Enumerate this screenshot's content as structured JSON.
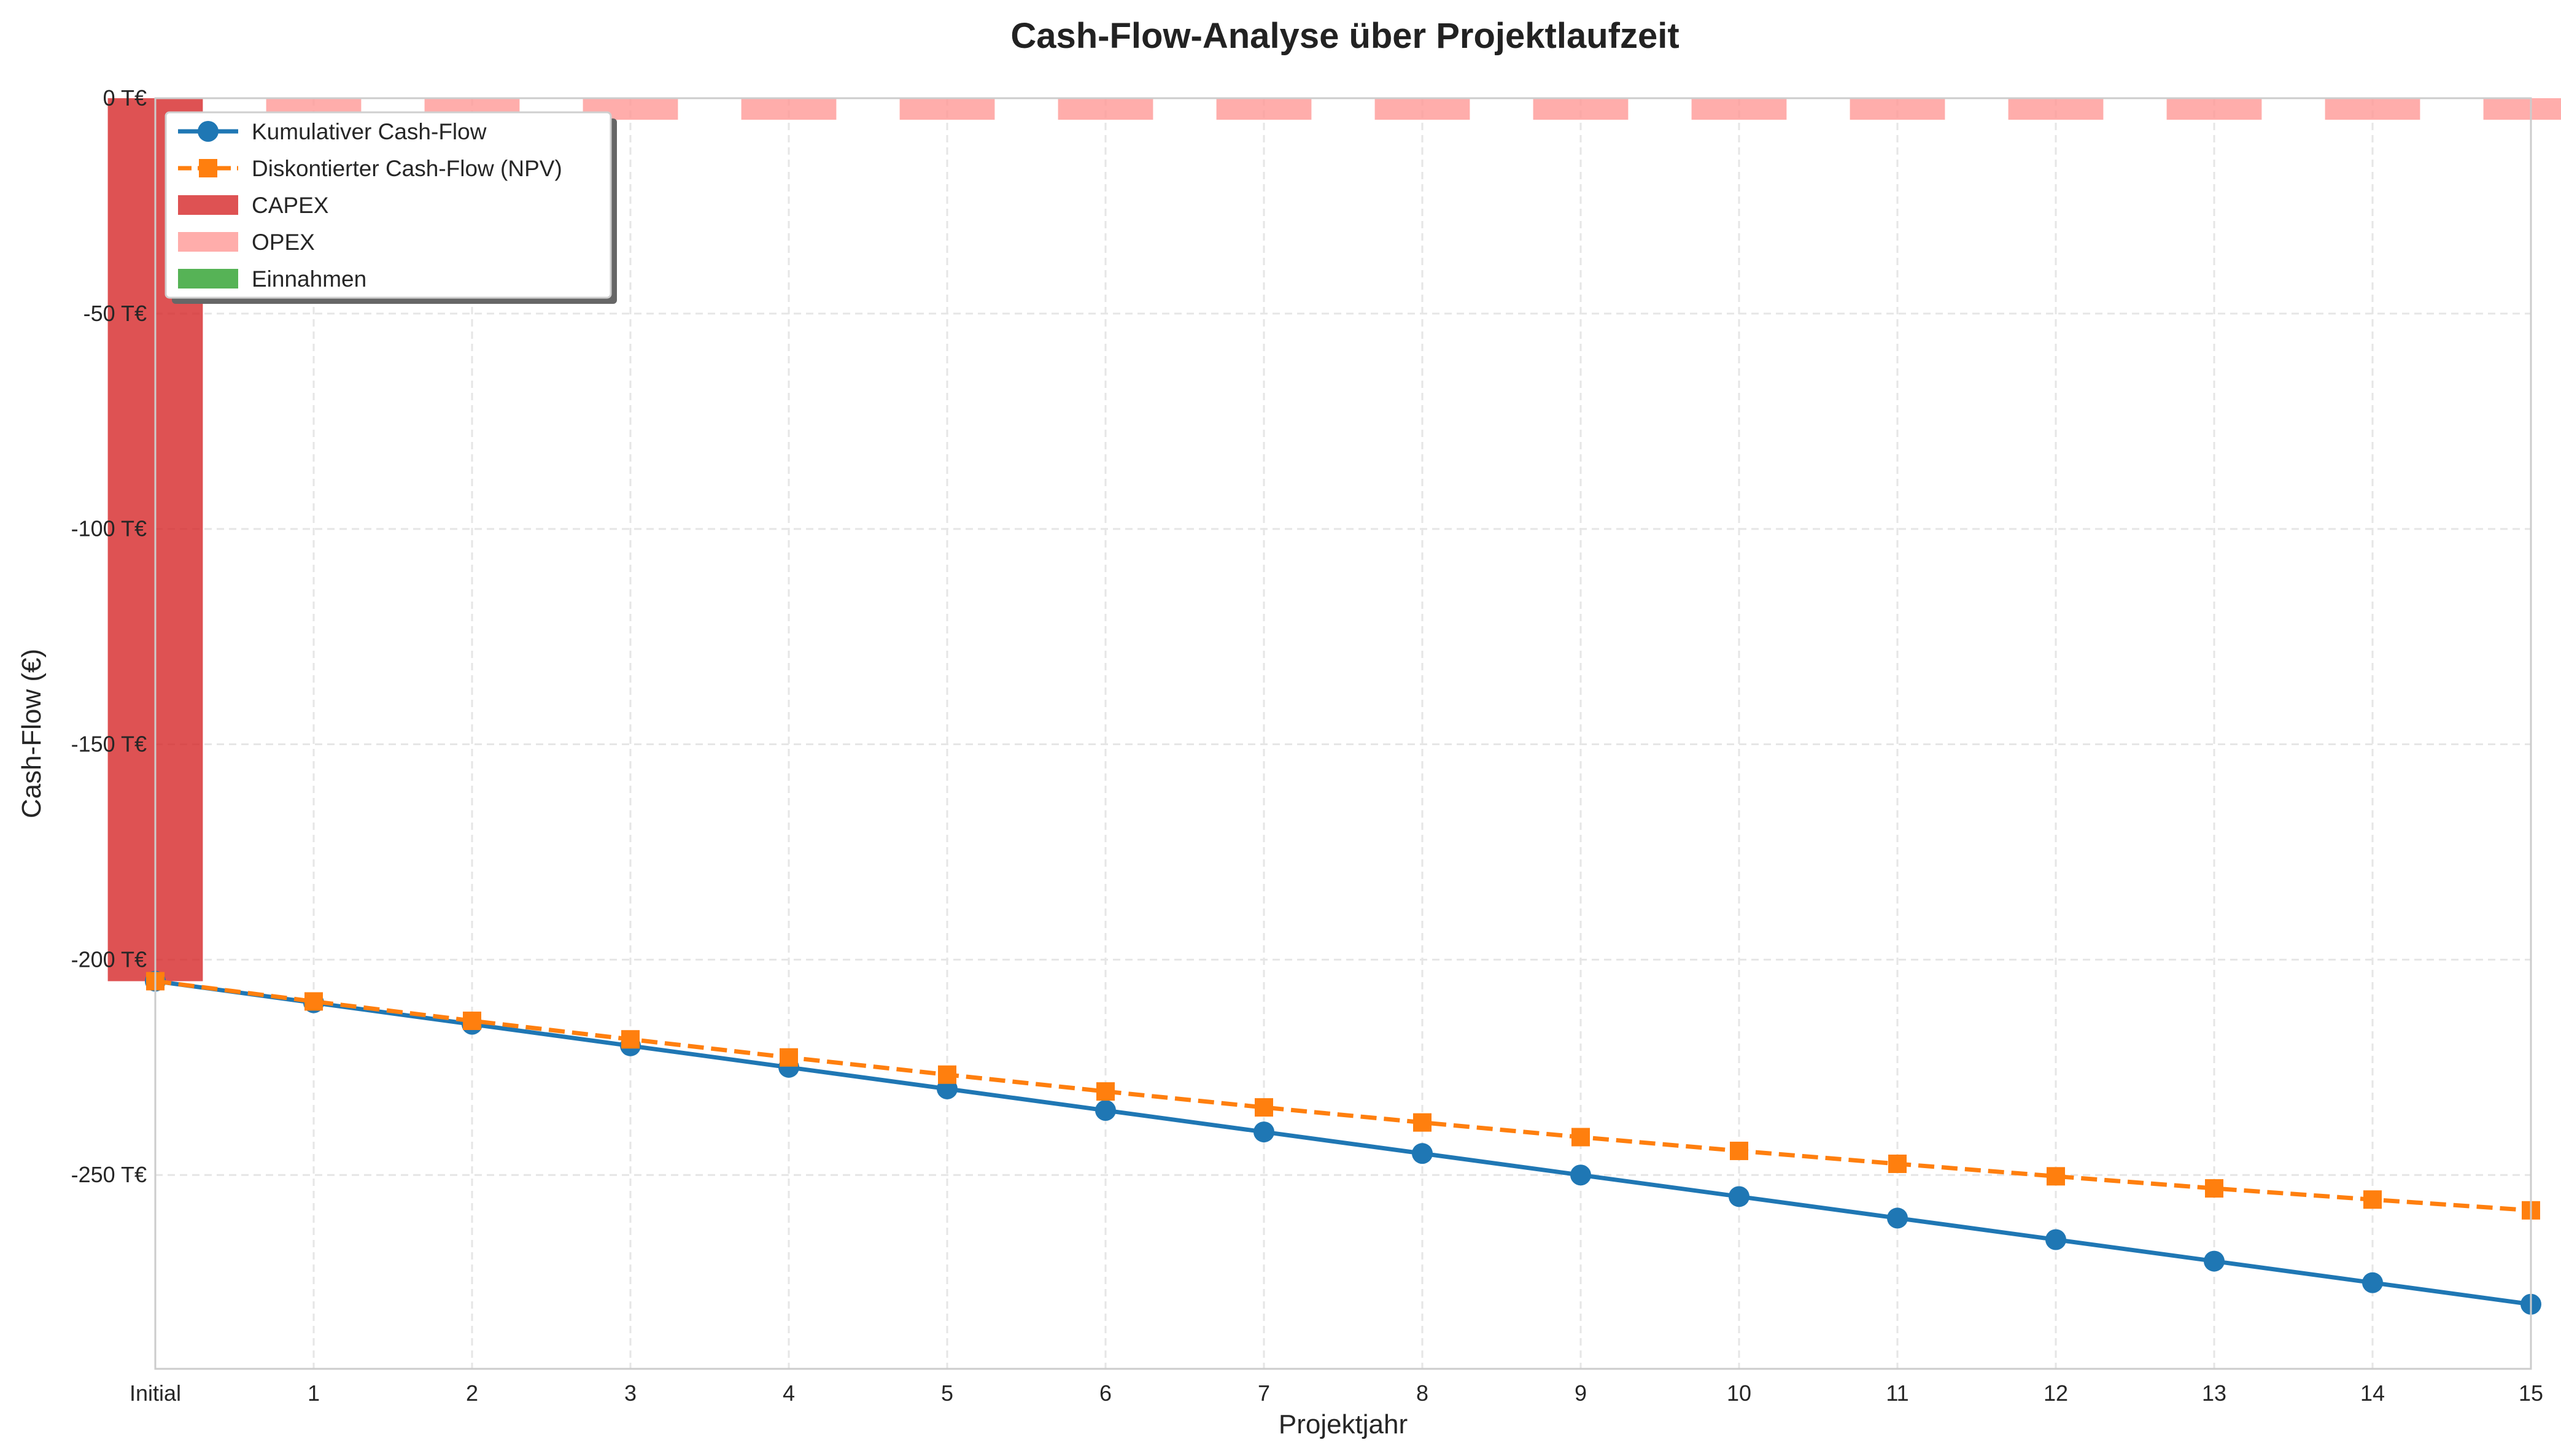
{
  "chart_data": {
    "type": "bar",
    "title": "Cash-Flow-Analyse über Projektlaufzeit",
    "xlabel": "Projektjahr",
    "ylabel": "Cash-Flow (€)",
    "categories": [
      "Initial",
      "1",
      "2",
      "3",
      "4",
      "5",
      "6",
      "7",
      "8",
      "9",
      "10",
      "11",
      "12",
      "13",
      "14",
      "15"
    ],
    "y_ticks": [
      0,
      -50,
      -100,
      -150,
      -200,
      -250
    ],
    "y_tick_labels": [
      "0 T€",
      "-50 T€",
      "-100 T€",
      "-150 T€",
      "-200 T€",
      "-250 T€"
    ],
    "ylim": [
      -295000,
      0
    ],
    "grid": true,
    "legend_position": "top-left",
    "bars": [
      {
        "name": "CAPEX",
        "color": "#d62728",
        "values": [
          -205000,
          0,
          0,
          0,
          0,
          0,
          0,
          0,
          0,
          0,
          0,
          0,
          0,
          0,
          0,
          0
        ]
      },
      {
        "name": "OPEX",
        "color": "#ff9896",
        "values": [
          0,
          -5000,
          -5000,
          -5000,
          -5000,
          -5000,
          -5000,
          -5000,
          -5000,
          -5000,
          -5000,
          -5000,
          -5000,
          -5000,
          -5000,
          -5000
        ]
      },
      {
        "name": "Einnahmen",
        "color": "#2ca02c",
        "values": [
          0,
          0,
          0,
          0,
          0,
          0,
          0,
          0,
          0,
          0,
          0,
          0,
          0,
          0,
          0,
          0
        ]
      }
    ],
    "series": [
      {
        "name": "Kumulativer Cash-Flow",
        "color": "#1f77b4",
        "style": "solid",
        "marker": "circle",
        "values": [
          -205000,
          -210000,
          -215000,
          -220000,
          -225000,
          -230000,
          -235000,
          -240000,
          -245000,
          -250000,
          -255000,
          -260000,
          -265000,
          -270000,
          -275000,
          -280000
        ]
      },
      {
        "name": "Diskontierter Cash-Flow (NPV)",
        "color": "#ff7f0e",
        "style": "dashed",
        "marker": "square",
        "values": [
          -205000,
          -209700,
          -214200,
          -218500,
          -222700,
          -226700,
          -230600,
          -234300,
          -237800,
          -241200,
          -244400,
          -247400,
          -250300,
          -253100,
          -255700,
          -258200
        ]
      }
    ],
    "legend": [
      "Kumulativer Cash-Flow",
      "Diskontierter Cash-Flow (NPV)",
      "CAPEX",
      "OPEX",
      "Einnahmen"
    ]
  }
}
